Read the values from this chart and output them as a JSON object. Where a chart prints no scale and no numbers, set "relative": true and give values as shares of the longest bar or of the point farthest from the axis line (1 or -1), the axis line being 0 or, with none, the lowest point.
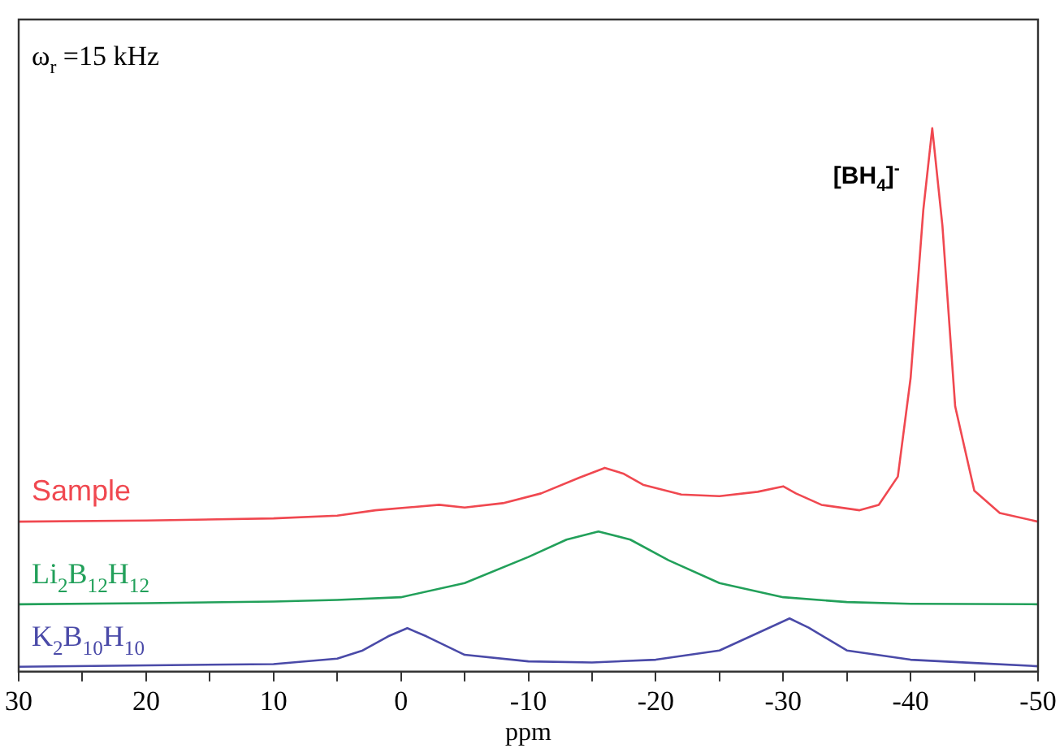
{
  "chart_data": {
    "type": "line",
    "relative": true,
    "xlabel": "ppm",
    "xlim": [
      30,
      -50
    ],
    "xticks": [
      30,
      {
        "value": 25,
        "label": null
      },
      20,
      {
        "value": 15,
        "label": null
      },
      10,
      {
        "value": 5,
        "label": null
      },
      0,
      {
        "value": -5,
        "label": null
      },
      -10,
      {
        "value": -15,
        "label": null
      },
      -20,
      {
        "value": -25,
        "label": null
      },
      -30,
      {
        "value": -35,
        "label": null
      },
      -40,
      {
        "value": -45,
        "label": null
      },
      -50
    ],
    "grid": false,
    "legend": false,
    "marker": "none",
    "line_style": "solid",
    "annotations": [
      "ω$_{r}$ =15 kHz",
      {
        "text": "[BH$_{4}$]$^{-}$",
        "x": -41.7,
        "y": 1
      }
    ],
    "series": [
      {
        "name": "Sample",
        "color": "#f04850",
        "x": [
          30,
          20,
          10,
          5,
          2,
          -3,
          -5,
          -8,
          -11,
          -14,
          -16,
          -17.5,
          -19,
          -22,
          -25,
          -28,
          -30,
          -31,
          -33,
          -36,
          -37.5,
          -39,
          -40,
          -41,
          -41.7,
          -42.5,
          -43.5,
          -45,
          -47,
          -50
        ],
        "values": [
          0.276,
          0.278,
          0.282,
          0.287,
          0.297,
          0.307,
          0.302,
          0.31,
          0.328,
          0.357,
          0.375,
          0.364,
          0.344,
          0.326,
          0.323,
          0.331,
          0.341,
          0.328,
          0.307,
          0.297,
          0.307,
          0.359,
          0.54,
          0.85,
          1,
          0.82,
          0.488,
          0.333,
          0.292,
          0.276
        ]
      },
      {
        "name": "Li$_{2}$B$_{12}$H$_{12}$",
        "color": "#22a05a",
        "x": [
          30,
          20,
          10,
          5,
          0,
          -5,
          -10,
          -13,
          -15.5,
          -18,
          -21,
          -25,
          -30,
          -35,
          -40,
          -50
        ],
        "values": [
          0.124,
          0.126,
          0.129,
          0.132,
          0.137,
          0.163,
          0.211,
          0.243,
          0.258,
          0.243,
          0.205,
          0.163,
          0.137,
          0.128,
          0.125,
          0.124
        ]
      },
      {
        "name": "K$_{2}$B$_{10}$H$_{10}$",
        "color": "#4a4aa8",
        "x": [
          30,
          10,
          5,
          3,
          1,
          -0.5,
          -2,
          -5,
          -10,
          -15,
          -20,
          -25,
          -28,
          -30.5,
          -32,
          -35,
          -40,
          -45,
          -50
        ],
        "values": [
          0.009,
          0.014,
          0.024,
          0.039,
          0.065,
          0.08,
          0.065,
          0.031,
          0.019,
          0.017,
          0.022,
          0.039,
          0.071,
          0.098,
          0.081,
          0.039,
          0.022,
          0.016,
          0.01
        ]
      }
    ]
  }
}
